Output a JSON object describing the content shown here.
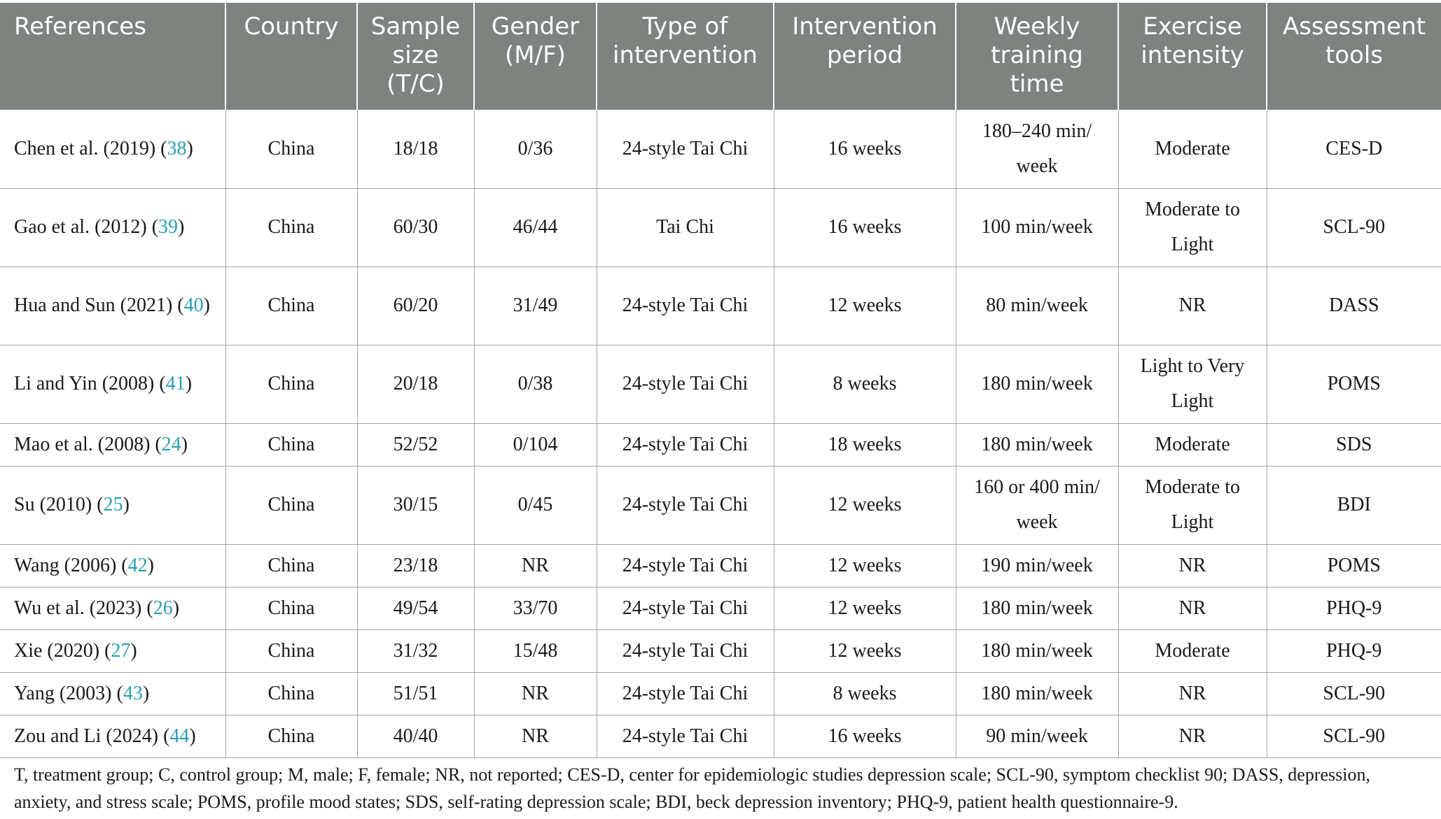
{
  "headers": [
    "References",
    "Country",
    "Sample size (T/C)",
    "Gender (M/F)",
    "Type of intervention",
    "Intervention period",
    "Weekly training time",
    "Exercise intensity",
    "Assessment tools"
  ],
  "rows": [
    {
      "ref": "Chen et al. (2019)",
      "cite": "38",
      "country": "China",
      "sample": "18/18",
      "gender": "0/36",
      "type": "24-style Tai Chi",
      "period": "16 weeks",
      "time": "180–240 min/ week",
      "intensity": "Moderate",
      "tool": "CES-D"
    },
    {
      "ref": "Gao et al. (2012)",
      "cite": "39",
      "country": "China",
      "sample": "60/30",
      "gender": "46/44",
      "type": "Tai Chi",
      "period": "16 weeks",
      "time": "100 min/week",
      "intensity": "Moderate to Light",
      "tool": "SCL-90"
    },
    {
      "ref": "Hua and Sun (2021)",
      "cite": "40",
      "country": "China",
      "sample": "60/20",
      "gender": "31/49",
      "type": "24-style Tai Chi",
      "period": "12 weeks",
      "time": "80 min/week",
      "intensity": "NR",
      "tool": "DASS"
    },
    {
      "ref": "Li and Yin (2008)",
      "cite": "41",
      "country": "China",
      "sample": "20/18",
      "gender": "0/38",
      "type": "24-style Tai Chi",
      "period": "8 weeks",
      "time": "180 min/week",
      "intensity": "Light to Very Light",
      "tool": "POMS"
    },
    {
      "ref": "Mao et al. (2008)",
      "cite": "24",
      "country": "China",
      "sample": "52/52",
      "gender": "0/104",
      "type": "24-style Tai Chi",
      "period": "18 weeks",
      "time": "180 min/week",
      "intensity": "Moderate",
      "tool": "SDS"
    },
    {
      "ref": "Su (2010)",
      "cite": "25",
      "country": "China",
      "sample": "30/15",
      "gender": "0/45",
      "type": "24-style Tai Chi",
      "period": "12 weeks",
      "time": "160 or 400 min/ week",
      "intensity": "Moderate to Light",
      "tool": "BDI"
    },
    {
      "ref": "Wang (2006)",
      "cite": "42",
      "country": "China",
      "sample": "23/18",
      "gender": "NR",
      "type": "24-style Tai Chi",
      "period": "12 weeks",
      "time": "190 min/week",
      "intensity": "NR",
      "tool": "POMS"
    },
    {
      "ref": "Wu et al. (2023)",
      "cite": "26",
      "country": "China",
      "sample": "49/54",
      "gender": "33/70",
      "type": "24-style Tai Chi",
      "period": "12 weeks",
      "time": "180 min/week",
      "intensity": "NR",
      "tool": "PHQ-9"
    },
    {
      "ref": "Xie (2020)",
      "cite": "27",
      "country": "China",
      "sample": "31/32",
      "gender": "15/48",
      "type": "24-style Tai Chi",
      "period": "12 weeks",
      "time": "180 min/week",
      "intensity": "Moderate",
      "tool": "PHQ-9"
    },
    {
      "ref": "Yang (2003)",
      "cite": "43",
      "country": "China",
      "sample": "51/51",
      "gender": "NR",
      "type": "24-style Tai Chi",
      "period": "8 weeks",
      "time": "180 min/week",
      "intensity": "NR",
      "tool": "SCL-90"
    },
    {
      "ref": "Zou and Li (2024)",
      "cite": "44",
      "country": "China",
      "sample": "40/40",
      "gender": "NR",
      "type": "24-style Tai Chi",
      "period": "16 weeks",
      "time": "90 min/week",
      "intensity": "NR",
      "tool": "SCL-90"
    }
  ],
  "footnote": "T, treatment group; C, control group; M, male; F, female; NR, not reported; CES-D, center for epidemiologic studies depression scale; SCL-90, symptom checklist 90; DASS, depression, anxiety, and stress scale; POMS, profile mood states; SDS, self-rating depression scale; BDI, beck depression inventory; PHQ-9, patient health questionnaire-9.",
  "colors": {
    "header_bg": "#7f8380",
    "citation": "#2a9fb0"
  }
}
